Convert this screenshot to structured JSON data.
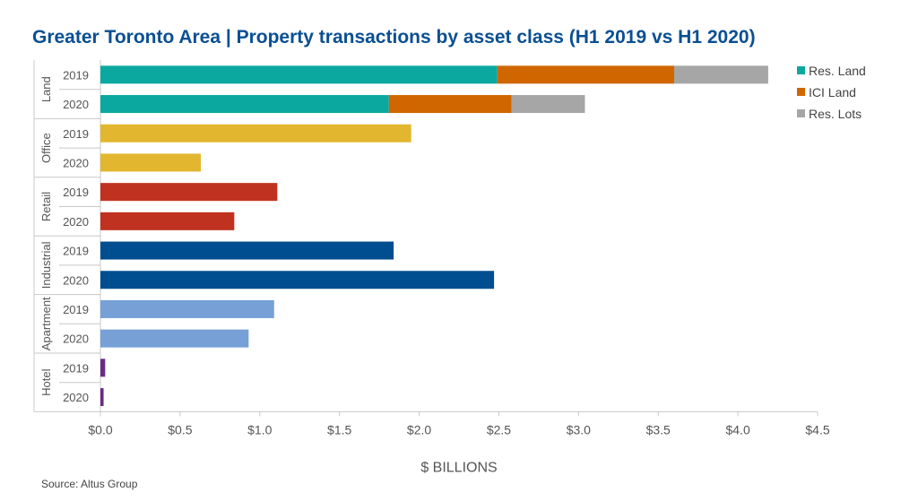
{
  "chart_data": {
    "type": "bar",
    "orientation": "horizontal",
    "stacked": true,
    "title": "Greater Toronto Area | Property transactions by asset class (H1 2019 vs H1 2020)",
    "xlabel": "$ BILLIONS",
    "xlim": [
      0,
      4.5
    ],
    "xticks": [
      "$0.0",
      "$0.5",
      "$1.0",
      "$1.5",
      "$2.0",
      "$2.5",
      "$3.0",
      "$3.5",
      "$4.0",
      "$4.5"
    ],
    "grid": false,
    "legend_position": "top-right",
    "legend": [
      {
        "name": "Res. Land",
        "color": "#0ba8a0"
      },
      {
        "name": "ICI Land",
        "color": "#cf6600"
      },
      {
        "name": "Res. Lots",
        "color": "#a6a6a6"
      }
    ],
    "groups": [
      {
        "name": "Land",
        "rows": [
          {
            "year": "2019",
            "segments": [
              {
                "value": 2.49,
                "color": "#0ba8a0"
              },
              {
                "value": 1.11,
                "color": "#cf6600"
              },
              {
                "value": 0.59,
                "color": "#a6a6a6"
              }
            ]
          },
          {
            "year": "2020",
            "segments": [
              {
                "value": 1.81,
                "color": "#0ba8a0"
              },
              {
                "value": 0.77,
                "color": "#cf6600"
              },
              {
                "value": 0.46,
                "color": "#a6a6a6"
              }
            ]
          }
        ]
      },
      {
        "name": "Office",
        "rows": [
          {
            "year": "2019",
            "segments": [
              {
                "value": 1.95,
                "color": "#e2b72f"
              }
            ]
          },
          {
            "year": "2020",
            "segments": [
              {
                "value": 0.63,
                "color": "#e2b72f"
              }
            ]
          }
        ]
      },
      {
        "name": "Retail",
        "rows": [
          {
            "year": "2019",
            "segments": [
              {
                "value": 1.11,
                "color": "#c03220"
              }
            ]
          },
          {
            "year": "2020",
            "segments": [
              {
                "value": 0.84,
                "color": "#c03220"
              }
            ]
          }
        ]
      },
      {
        "name": "Industrial",
        "rows": [
          {
            "year": "2019",
            "segments": [
              {
                "value": 1.84,
                "color": "#004e8f"
              }
            ]
          },
          {
            "year": "2020",
            "segments": [
              {
                "value": 2.47,
                "color": "#004e8f"
              }
            ]
          }
        ]
      },
      {
        "name": "Apartment",
        "rows": [
          {
            "year": "2019",
            "segments": [
              {
                "value": 1.09,
                "color": "#76a0d6"
              }
            ]
          },
          {
            "year": "2020",
            "segments": [
              {
                "value": 0.93,
                "color": "#76a0d6"
              }
            ]
          }
        ]
      },
      {
        "name": "Hotel",
        "rows": [
          {
            "year": "2019",
            "segments": [
              {
                "value": 0.03,
                "color": "#6b2a86"
              }
            ]
          },
          {
            "year": "2020",
            "segments": [
              {
                "value": 0.02,
                "color": "#6b2a86"
              }
            ]
          }
        ]
      }
    ]
  },
  "source": "Source:  Altus Group"
}
